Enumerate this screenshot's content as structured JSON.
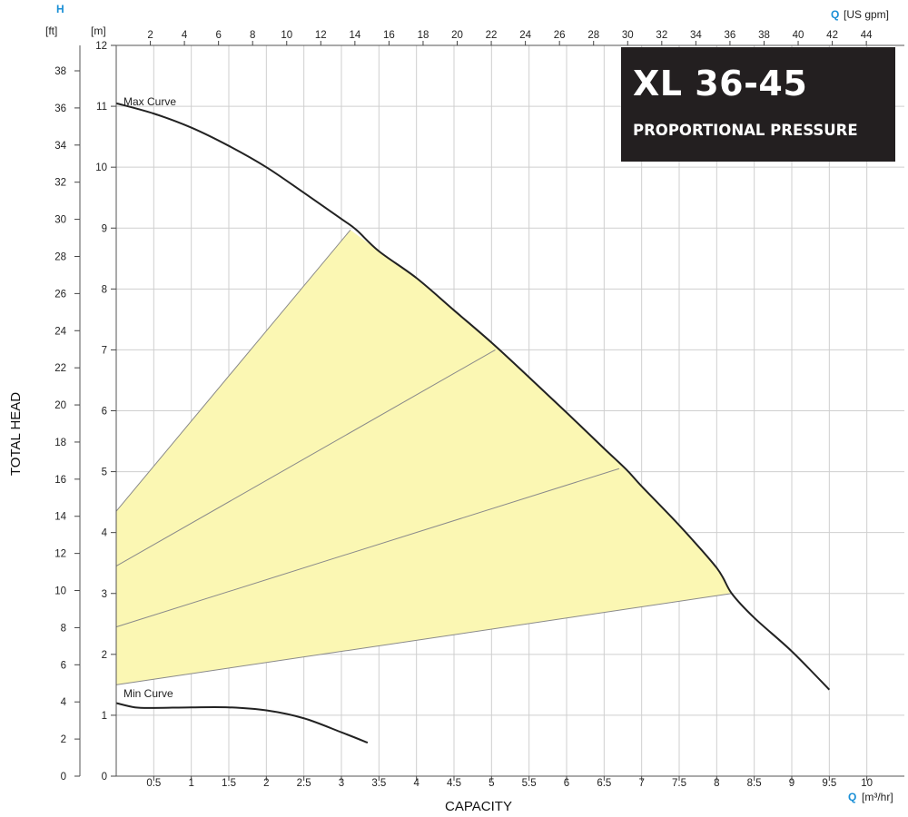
{
  "title": "XL 36-45",
  "subtitle": "PROPORTIONAL PRESSURE",
  "colors": {
    "fill": "#fbf7b3",
    "curve": "#222222",
    "grid": "#cfcfcf",
    "accent": "#1a8fd6",
    "title_bg": "#231f20"
  },
  "axes": {
    "y_symbol": "H",
    "y_unit_ft": "[ft]",
    "y_unit_m": "[m]",
    "y_title": "TOTAL HEAD",
    "x_title": "CAPACITY",
    "x_top_q": "Q",
    "x_top_unit": "[US gpm]",
    "x_bottom_q": "Q",
    "x_bottom_unit": "[m³/hr]"
  },
  "chart_data": {
    "type": "line",
    "title": "XL 36-45",
    "subtitle": "PROPORTIONAL PRESSURE",
    "xlabel": "CAPACITY",
    "ylabel": "TOTAL HEAD",
    "xlim": [
      0,
      10.5
    ],
    "ylim": [
      0,
      12
    ],
    "x_unit": "m³/hr",
    "y_unit": "m",
    "secondary_x": {
      "unit": "US gpm",
      "ticks": [
        2,
        4,
        6,
        8,
        10,
        12,
        14,
        16,
        18,
        20,
        22,
        24,
        26,
        28,
        30,
        32,
        34,
        36,
        38,
        40,
        42,
        44
      ]
    },
    "secondary_y": {
      "unit": "ft",
      "ticks": [
        0,
        2,
        4,
        6,
        8,
        10,
        12,
        14,
        16,
        18,
        20,
        22,
        24,
        26,
        28,
        30,
        32,
        34,
        36,
        38
      ]
    },
    "x_ticks": [
      "0.5",
      "1",
      "1.5",
      "2",
      "2.5",
      "3",
      "3.5",
      "4",
      "4.5",
      "5",
      "5.5",
      "6",
      "6.5",
      "7",
      "7.5",
      "8",
      "8.5",
      "9",
      "9.5",
      "10"
    ],
    "y_ticks": [
      "0",
      "1",
      "2",
      "3",
      "4",
      "5",
      "6",
      "7",
      "8",
      "9",
      "10",
      "11",
      "12"
    ],
    "grid": true,
    "series": [
      {
        "name": "Max Curve",
        "x": [
          0,
          0.5,
          1,
          1.5,
          2,
          2.5,
          3,
          3.2,
          3.5,
          4,
          4.5,
          5,
          5.5,
          6,
          6.5,
          6.8,
          7,
          7.5,
          8,
          8.2,
          8.5,
          9,
          9.5
        ],
        "y": [
          11.05,
          10.88,
          10.65,
          10.35,
          10.0,
          9.58,
          9.15,
          8.97,
          8.62,
          8.18,
          7.65,
          7.12,
          6.55,
          5.97,
          5.38,
          5.03,
          4.76,
          4.12,
          3.42,
          3.0,
          2.6,
          2.05,
          1.42
        ]
      },
      {
        "name": "Min Curve",
        "x": [
          0,
          0.25,
          0.5,
          1,
          1.5,
          2,
          2.5,
          3,
          3.35
        ],
        "y": [
          1.2,
          1.13,
          1.12,
          1.13,
          1.13,
          1.08,
          0.95,
          0.72,
          0.55
        ]
      }
    ],
    "control_lines": [
      {
        "x": [
          0,
          3.12
        ],
        "y": [
          4.35,
          8.97
        ]
      },
      {
        "x": [
          0,
          5.05
        ],
        "y": [
          3.45,
          7.0
        ]
      },
      {
        "x": [
          0,
          6.7
        ],
        "y": [
          2.45,
          5.05
        ]
      },
      {
        "x": [
          0,
          8.2
        ],
        "y": [
          1.5,
          3.0
        ]
      }
    ],
    "region": {
      "fill": "#fbf7b3",
      "polygon": [
        [
          0,
          1.5
        ],
        [
          0,
          4.35
        ],
        [
          3.12,
          8.97
        ],
        [
          3.5,
          8.62
        ],
        [
          4,
          8.18
        ],
        [
          4.5,
          7.65
        ],
        [
          5,
          7.12
        ],
        [
          5.5,
          6.55
        ],
        [
          6,
          5.97
        ],
        [
          6.5,
          5.38
        ],
        [
          7,
          4.76
        ],
        [
          7.5,
          4.12
        ],
        [
          8,
          3.42
        ],
        [
          8.2,
          3.0
        ]
      ]
    }
  }
}
